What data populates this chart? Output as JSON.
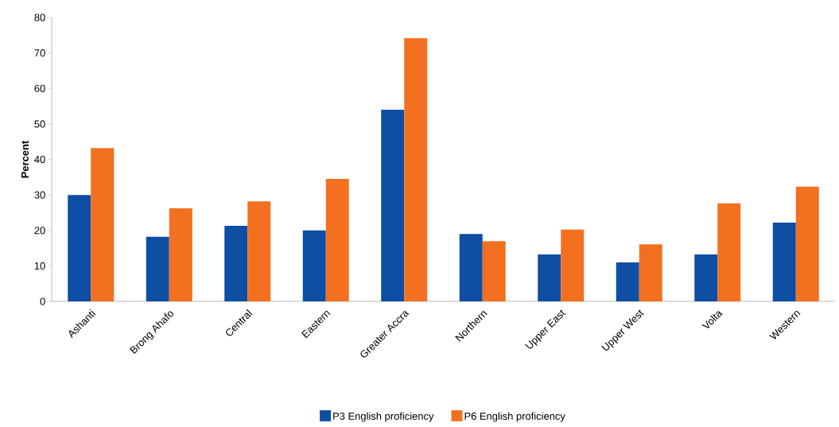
{
  "chart_data": {
    "type": "bar",
    "ylabel": "Percent",
    "categories": [
      "Ashanti",
      "Brong Ahafo",
      "Central",
      "Eastern",
      "Greater Accra",
      "Northern",
      "Upper East",
      "Upper West",
      "Volta",
      "Western"
    ],
    "series": [
      {
        "name": "P3 English proficiency",
        "color": "#0e4ea3",
        "values": [
          30,
          18.2,
          21.3,
          20,
          54,
          19,
          13.2,
          11,
          13.2,
          22.2
        ]
      },
      {
        "name": "P6 English proficiency",
        "color": "#f37021",
        "values": [
          43.2,
          26.2,
          28.2,
          34.5,
          74.2,
          17,
          20.2,
          16.1,
          27.6,
          32.3
        ]
      }
    ],
    "ylim": [
      0,
      80
    ],
    "yticks": [
      0,
      10,
      20,
      30,
      40,
      50,
      60,
      70,
      80
    ],
    "grid": false,
    "legend": "bottom"
  }
}
